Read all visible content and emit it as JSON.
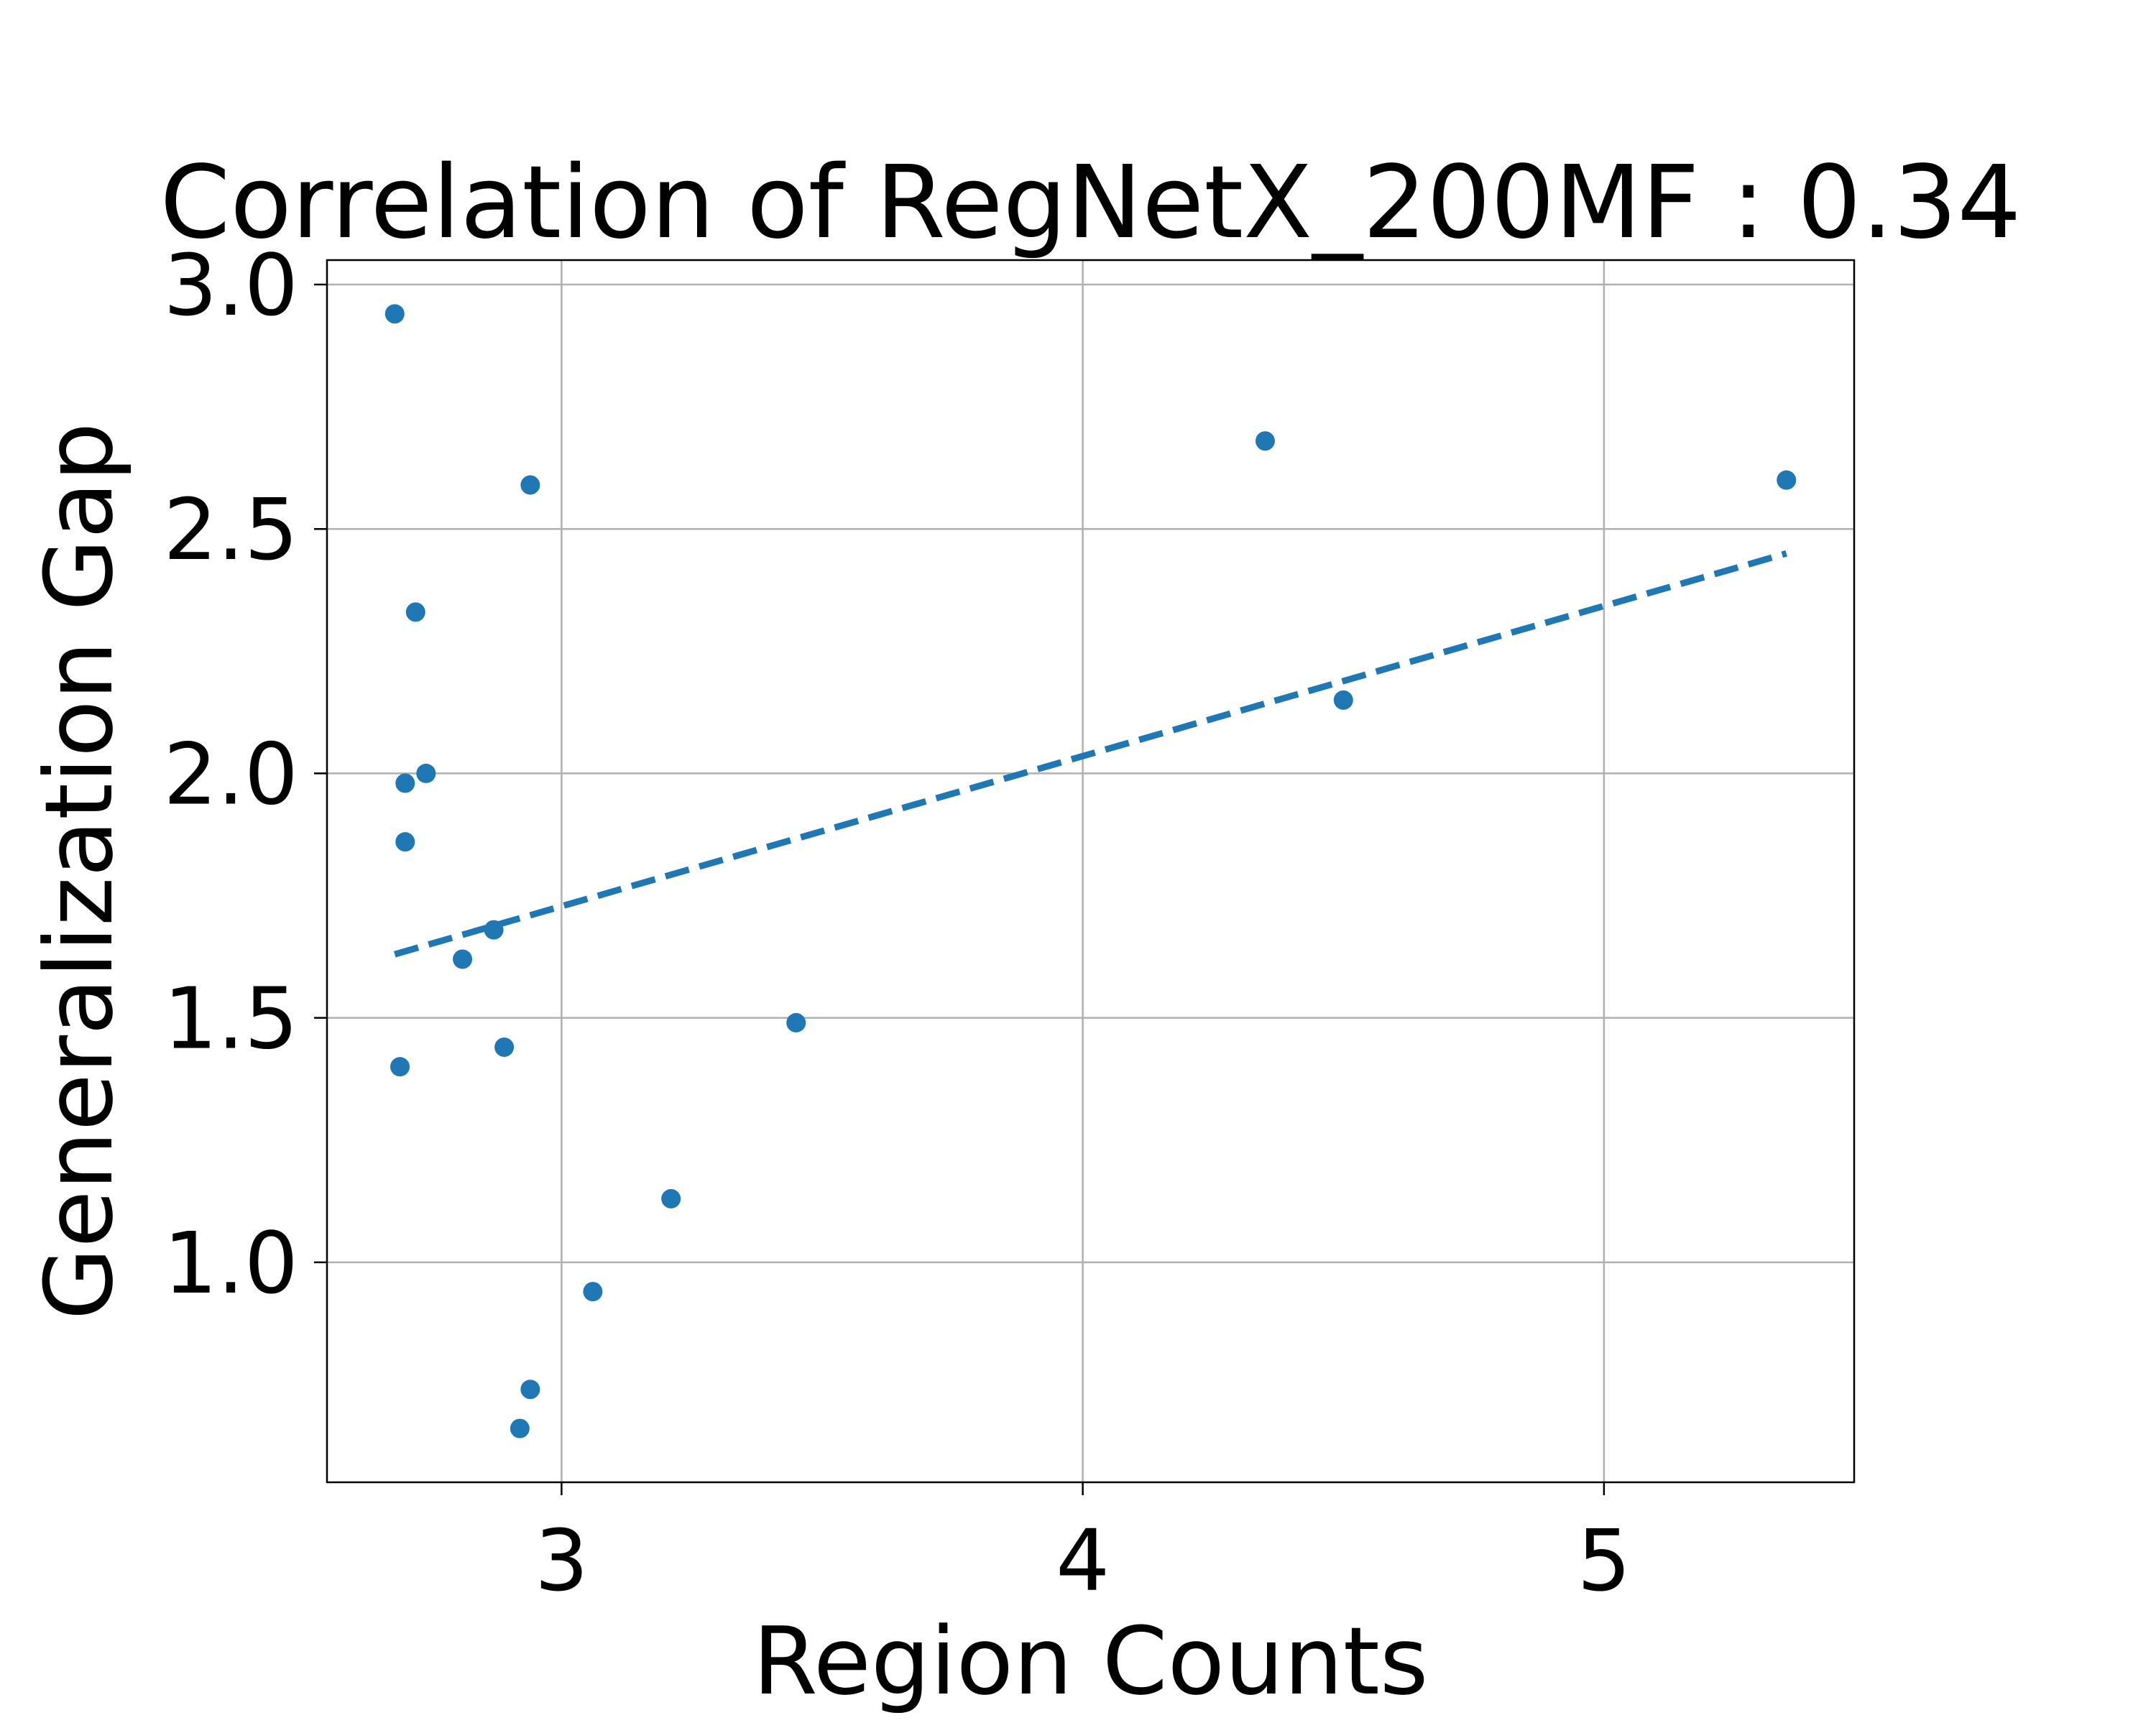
{
  "chart_data": {
    "type": "scatter",
    "title": "Correlation of RegNetX_200MF : 0.34",
    "xlabel": "Region Counts",
    "ylabel": "Generalization Gap",
    "xlim": [
      2.55,
      5.48
    ],
    "ylim": [
      0.55,
      3.05
    ],
    "xticks": [
      3,
      4,
      5
    ],
    "yticks": [
      1.0,
      1.5,
      2.0,
      2.5,
      3.0
    ],
    "xtick_labels": [
      "3",
      "4",
      "5"
    ],
    "ytick_labels": [
      "1.0",
      "1.5",
      "2.0",
      "2.5",
      "3.0"
    ],
    "grid": true,
    "color": "#1f77b4",
    "series": [
      {
        "type": "scatter",
        "points": [
          {
            "x": 2.68,
            "y": 2.94
          },
          {
            "x": 2.94,
            "y": 2.59
          },
          {
            "x": 4.35,
            "y": 2.68
          },
          {
            "x": 5.35,
            "y": 2.6
          },
          {
            "x": 2.72,
            "y": 2.33
          },
          {
            "x": 2.7,
            "y": 1.98
          },
          {
            "x": 2.74,
            "y": 2.0
          },
          {
            "x": 4.5,
            "y": 2.15
          },
          {
            "x": 2.7,
            "y": 1.86
          },
          {
            "x": 2.87,
            "y": 1.68
          },
          {
            "x": 2.81,
            "y": 1.62
          },
          {
            "x": 2.69,
            "y": 1.4
          },
          {
            "x": 2.89,
            "y": 1.44
          },
          {
            "x": 3.45,
            "y": 1.49
          },
          {
            "x": 3.21,
            "y": 1.13
          },
          {
            "x": 3.06,
            "y": 0.94
          },
          {
            "x": 2.94,
            "y": 0.74
          },
          {
            "x": 2.92,
            "y": 0.66
          }
        ]
      },
      {
        "type": "line",
        "style": "dashed",
        "points": [
          {
            "x": 2.68,
            "y": 1.63
          },
          {
            "x": 5.35,
            "y": 2.45
          }
        ]
      }
    ]
  }
}
